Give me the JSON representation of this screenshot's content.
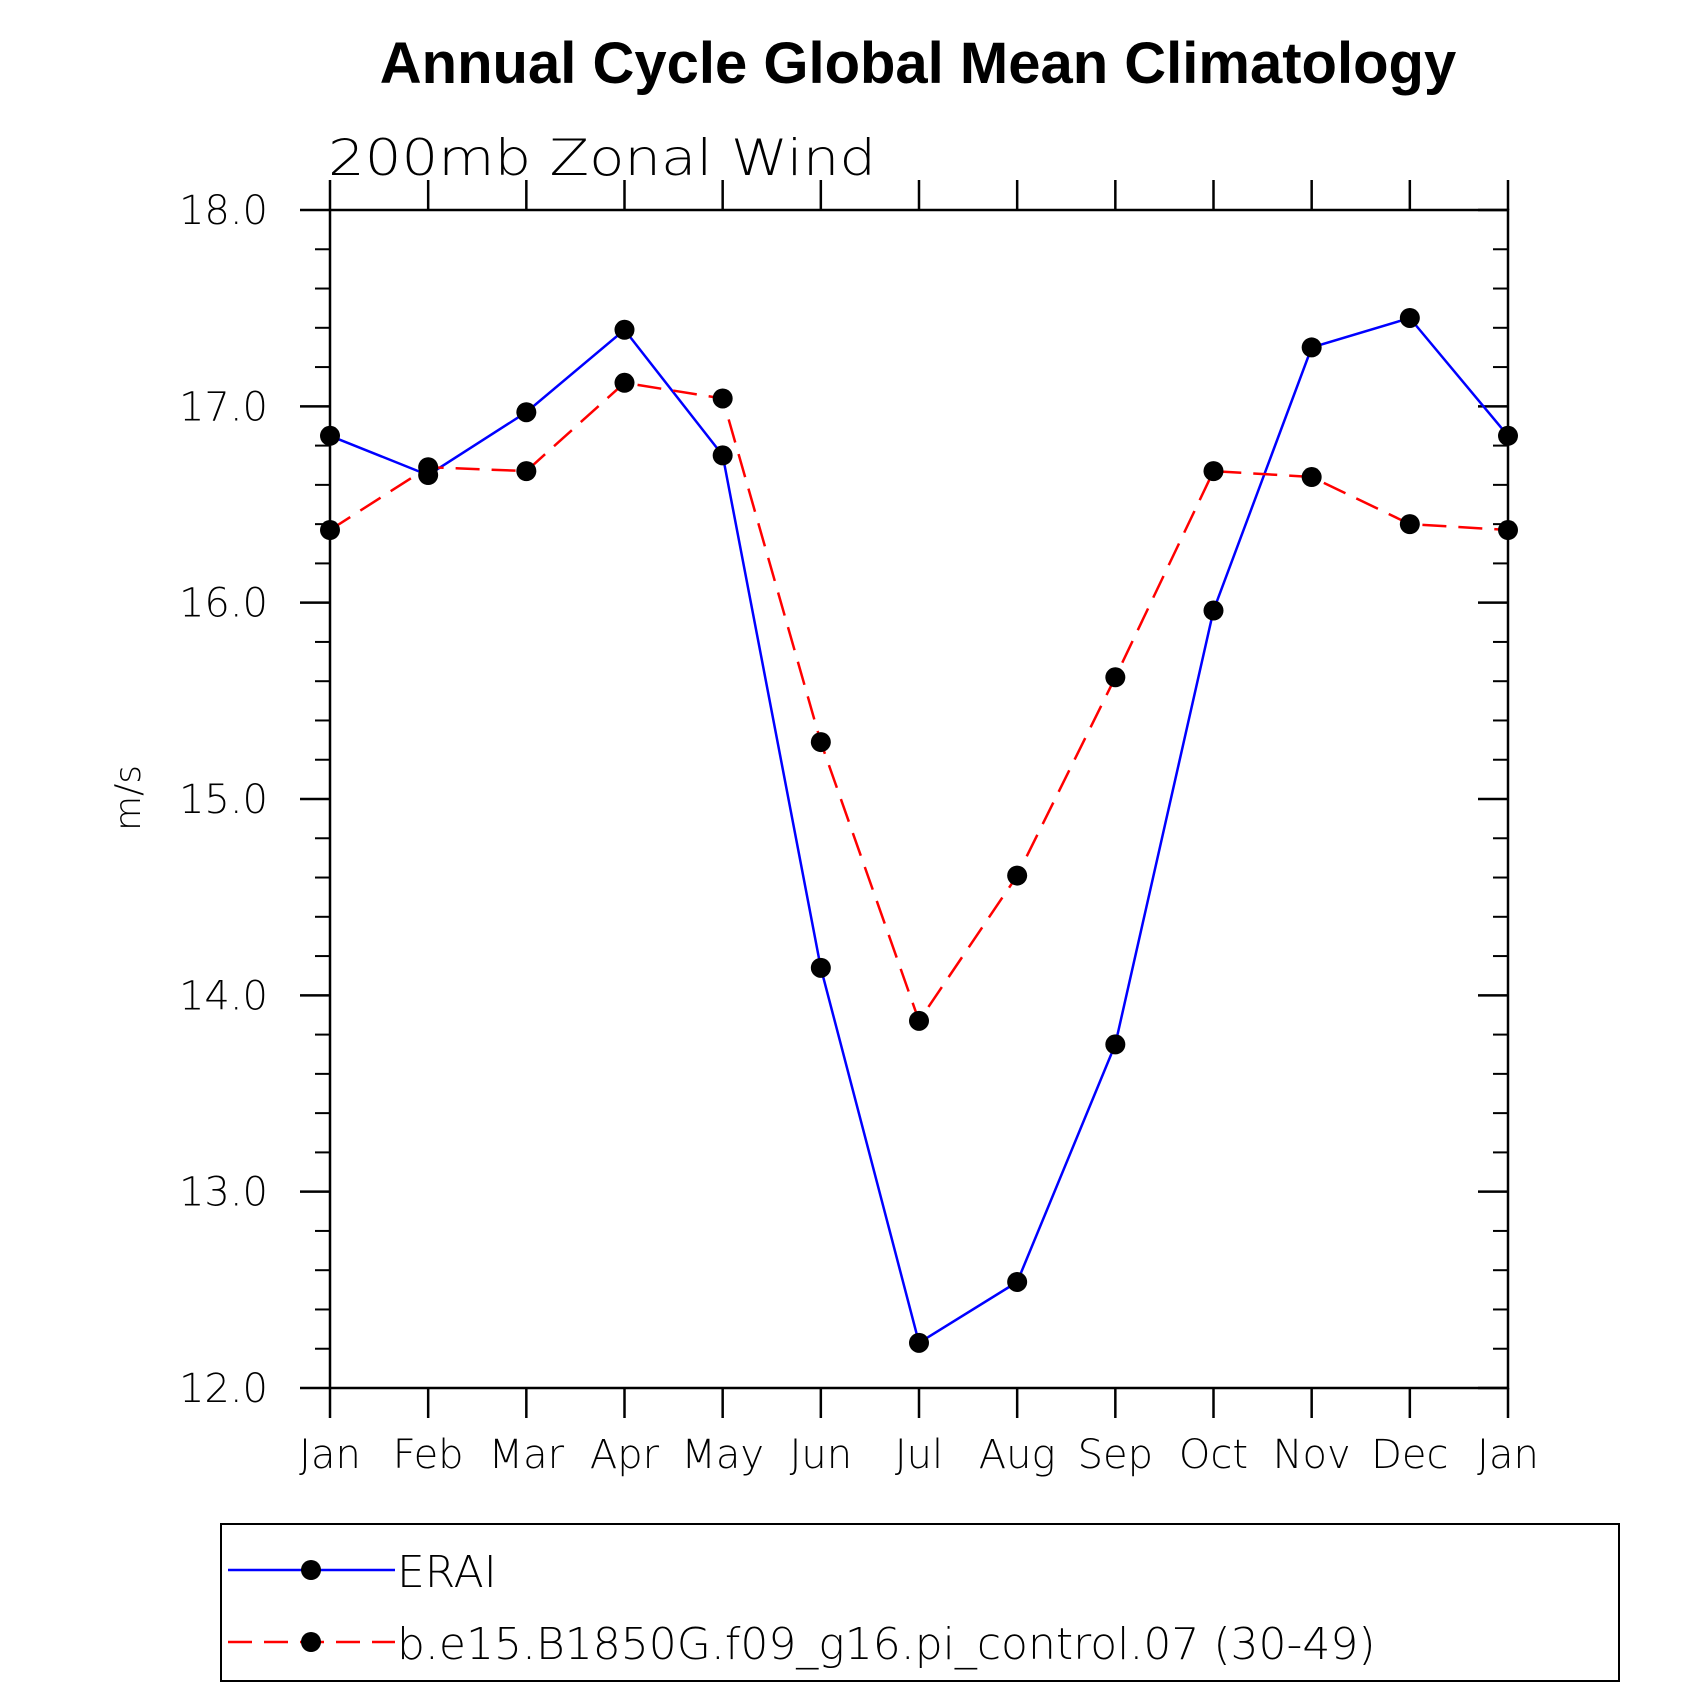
{
  "chart_data": {
    "type": "line",
    "title": "Annual Cycle Global Mean Climatology",
    "subtitle": "200mb Zonal Wind",
    "xlabel": "",
    "ylabel": "m/s",
    "categories": [
      "Jan",
      "Feb",
      "Mar",
      "Apr",
      "May",
      "Jun",
      "Jul",
      "Aug",
      "Sep",
      "Oct",
      "Nov",
      "Dec",
      "Jan"
    ],
    "ylim": [
      12.0,
      18.0
    ],
    "yticks": [
      "18.0",
      "17.0",
      "16.0",
      "15.0",
      "14.0",
      "13.0",
      "12.0"
    ],
    "grid": false,
    "legend_position": "bottom",
    "series": [
      {
        "name": "ERAI",
        "color": "#0000ff",
        "dash": "solid",
        "marker": "filled-circle",
        "values": [
          16.85,
          16.65,
          16.97,
          17.39,
          16.75,
          14.14,
          12.23,
          12.54,
          13.75,
          15.96,
          17.3,
          17.45,
          16.85
        ]
      },
      {
        "name": "b.e15.B1850G.f09_g16.pi_control.07 (30-49)",
        "color": "#ff0000",
        "dash": "dashed",
        "marker": "filled-circle",
        "values": [
          16.37,
          16.69,
          16.67,
          17.12,
          17.04,
          15.29,
          13.87,
          14.61,
          15.62,
          16.67,
          16.64,
          16.4,
          16.37
        ]
      }
    ]
  }
}
